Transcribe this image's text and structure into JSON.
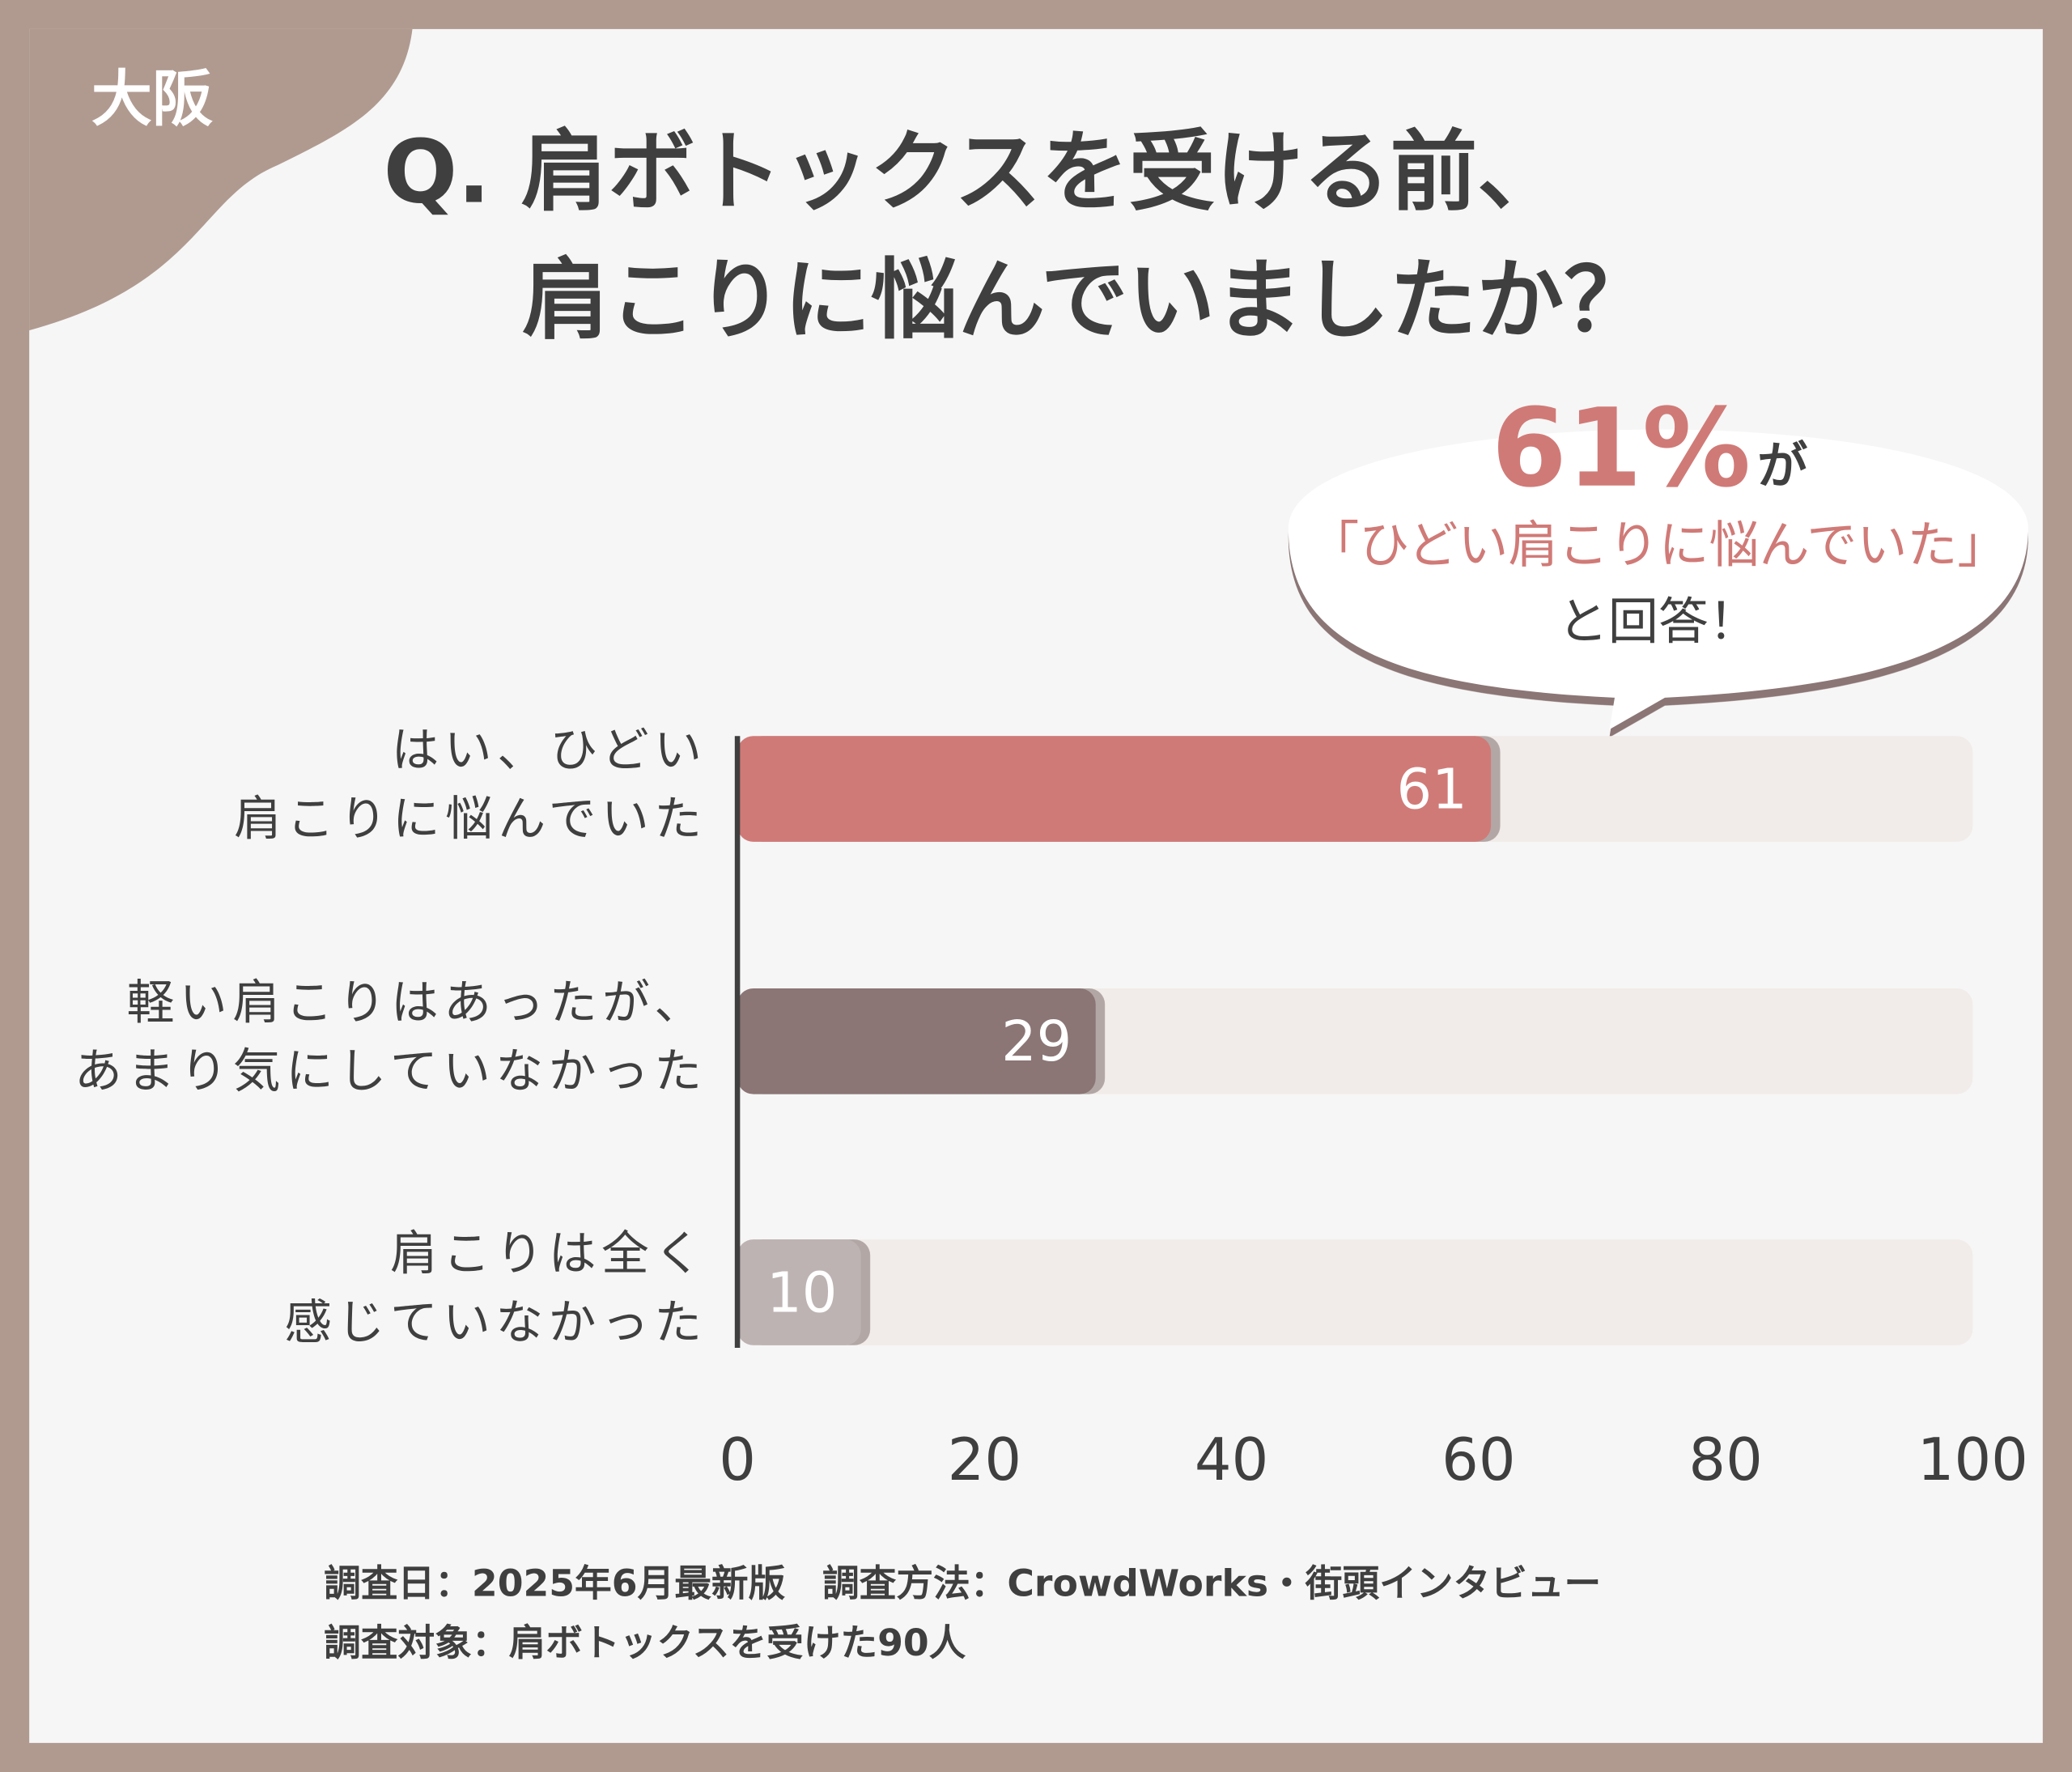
{
  "chart_data": {
    "type": "barh",
    "tag": "大阪",
    "title": [
      "Q. 肩ボトックスを受ける前、",
      "肩こりに悩んでいましたか？"
    ],
    "categories": [
      [
        "はい、ひどい",
        "肩こりに悩んでいた"
      ],
      [
        "軽い肩こりはあったが、",
        "あまり気にしていなかった"
      ],
      [
        "肩こりは全く",
        "感じていなかった"
      ]
    ],
    "values": [
      61,
      29,
      10
    ],
    "colors": [
      "#d07a77",
      "#8b7575",
      "#bdb3b2"
    ],
    "xlim": [
      0,
      100
    ],
    "xticks": [
      0,
      20,
      40,
      60,
      80,
      100
    ],
    "callout": {
      "highlight": "61%",
      "suffix": "が",
      "quote": "「ひどい肩こりに悩んでいた」",
      "closing": "と回答！"
    },
    "footnote": [
      "調査日：2025年6月最新版　調査方法：CrowdWorks・街頭インタビュー",
      "調査対象：肩ボトックスを受けた90人"
    ]
  }
}
